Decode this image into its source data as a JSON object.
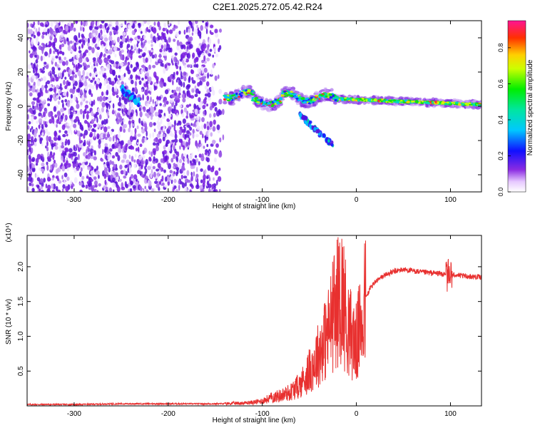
{
  "title": "C2E1.2025.272.05.42.R24",
  "chart_data": [
    {
      "type": "heatmap",
      "title": "C2E1.2025.272.05.42.R24",
      "xlabel": "Height of straight line (km)",
      "ylabel": "Frequency (Hz)",
      "xlim": [
        -350,
        133
      ],
      "ylim": [
        -50,
        50
      ],
      "x_ticks": [
        -300,
        -200,
        -100,
        0,
        100
      ],
      "y_ticks": [
        -40,
        -20,
        0,
        20,
        40
      ],
      "grid": false,
      "colorbar": {
        "label": "Normalized spectral amplitude",
        "range": [
          0,
          0.95
        ],
        "ticks": [
          0.0,
          0.2,
          0.4,
          0.6,
          0.8
        ],
        "colormap": "rainbow (white-violet-blue-cyan-green-yellow-red-magenta)"
      },
      "features": {
        "noise_region_x": [
          -350,
          -140
        ],
        "blob_center": {
          "x": -240,
          "y": 6
        },
        "carrier_line": {
          "x_start": -140,
          "x_end": 133,
          "y_start": 7,
          "y_end": 1
        },
        "branch": {
          "x_start": -60,
          "x_end": -25,
          "y_start": -5,
          "y_end": -23
        }
      }
    },
    {
      "type": "line",
      "xlabel": "Height of straight line (km)",
      "ylabel": "SNR (10 * v/v)",
      "y_multiplier": "(x10⁴)",
      "xlim": [
        -350,
        133
      ],
      "ylim": [
        0,
        2.45
      ],
      "x_ticks": [
        -300,
        -200,
        -100,
        0,
        100
      ],
      "y_ticks": [
        0.5,
        1.0,
        1.5,
        2.0
      ],
      "grid": false,
      "color": "#e8302f",
      "series": [
        {
          "x": [
            -350,
            -300,
            -250,
            -200,
            -150,
            -120,
            -110,
            -100,
            -90,
            -80,
            -70,
            -60,
            -50,
            -40,
            -30,
            -25,
            -20,
            -15,
            -10,
            -5,
            0,
            5,
            10,
            15,
            20,
            30,
            40,
            50,
            60,
            70,
            80,
            90,
            95,
            100,
            105,
            110,
            120,
            133
          ],
          "y": [
            0.02,
            0.02,
            0.03,
            0.03,
            0.03,
            0.04,
            0.05,
            0.07,
            0.12,
            0.15,
            0.2,
            0.3,
            0.5,
            0.75,
            1.05,
            1.3,
            1.5,
            1.6,
            1.2,
            1.0,
            0.9,
            1.2,
            1.55,
            1.7,
            1.78,
            1.88,
            1.93,
            1.96,
            1.94,
            1.92,
            1.91,
            1.9,
            1.88,
            1.85,
            1.89,
            1.87,
            1.86,
            1.85
          ]
        }
      ]
    }
  ]
}
